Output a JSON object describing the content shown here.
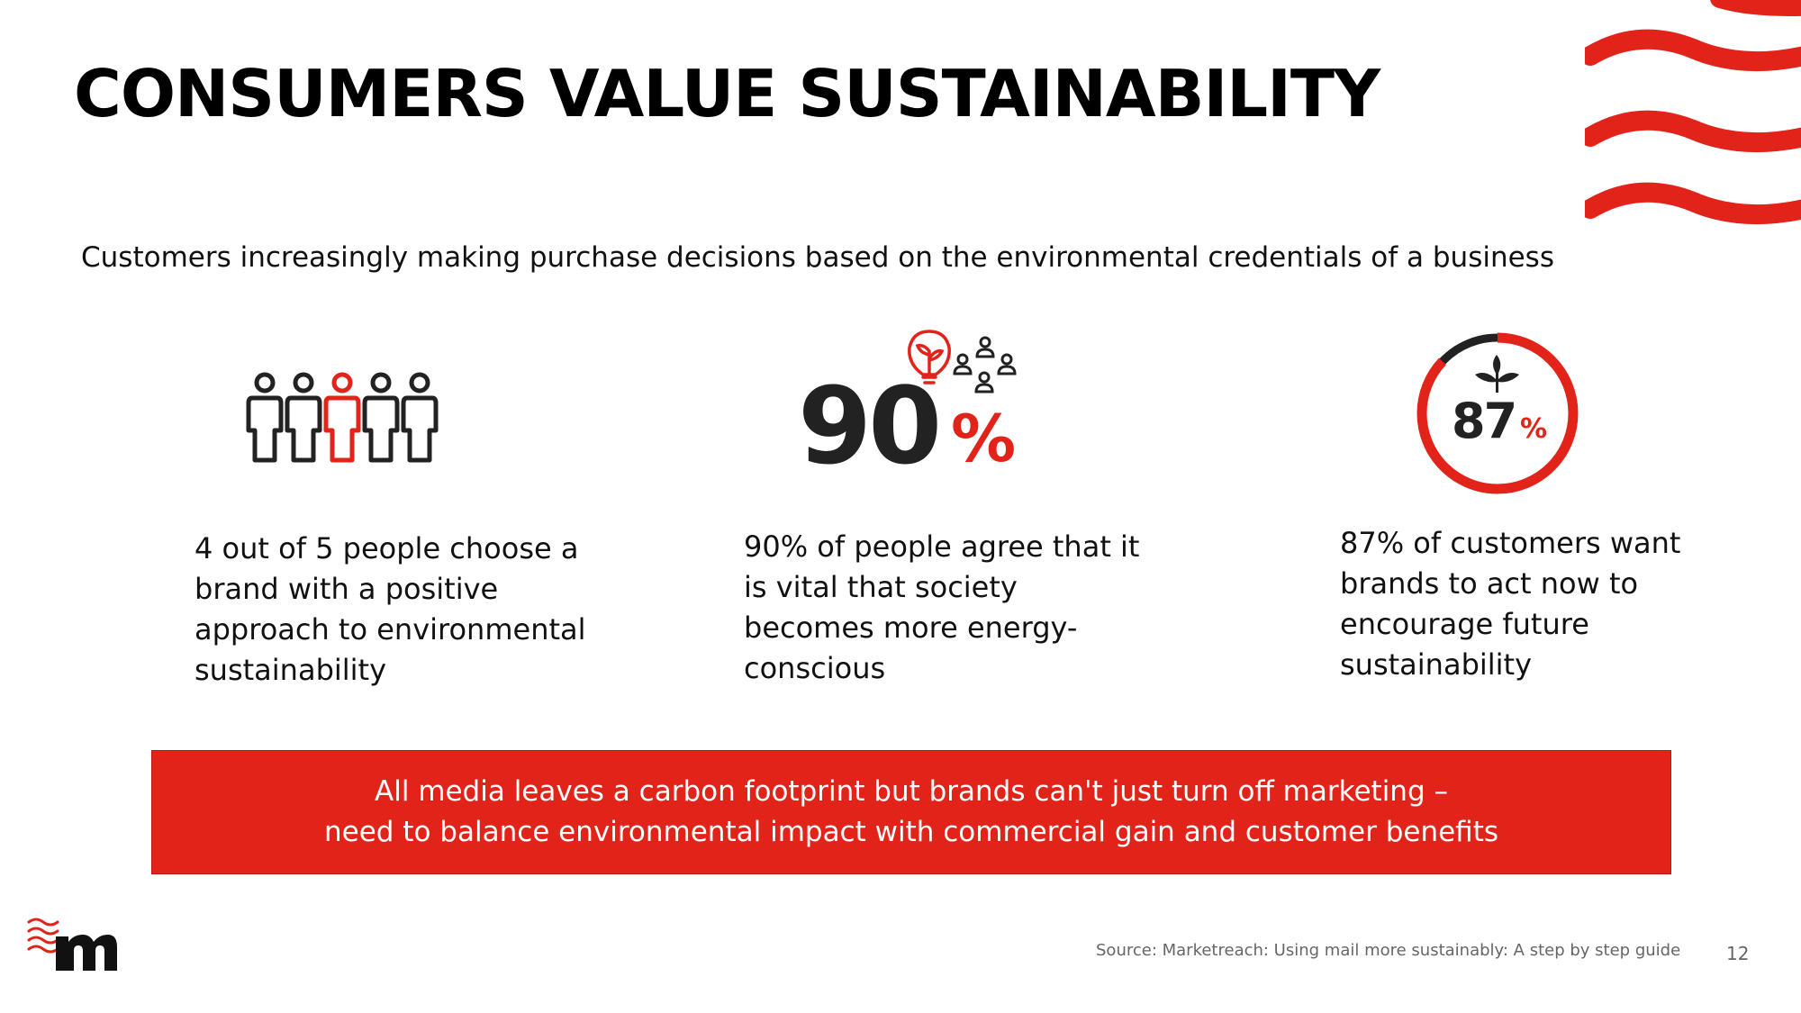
{
  "slide": {
    "title": "CONSUMERS VALUE SUSTAINABILITY",
    "subtitle": "Customers increasingly making purchase decisions based on the environmental credentials of a business"
  },
  "stats": [
    {
      "icon": "people-group-icon",
      "text": "4 out of 5 people choose a brand with a positive approach to environmental sustainability"
    },
    {
      "icon": "ninety-percent-icon",
      "figure": "90",
      "unit": "%",
      "text": "90% of people agree that it is vital that society becomes more energy-conscious"
    },
    {
      "icon": "eighty-seven-percent-ring-icon",
      "figure": "87",
      "unit": "%",
      "fraction": 0.87,
      "text": "87% of customers want brands to act now to encourage future sustainability"
    }
  ],
  "banner": {
    "line1": "All media leaves a carbon footprint but brands can't just turn off marketing –",
    "line2": "need to balance environmental impact with commercial gain and customer benefits"
  },
  "footer": {
    "source": "Source: Marketreach: Using mail more sustainably: A step by step guide",
    "page_number": "12"
  },
  "colors": {
    "accent": "#e2231a",
    "text": "#111111",
    "dark_icon": "#222222"
  }
}
